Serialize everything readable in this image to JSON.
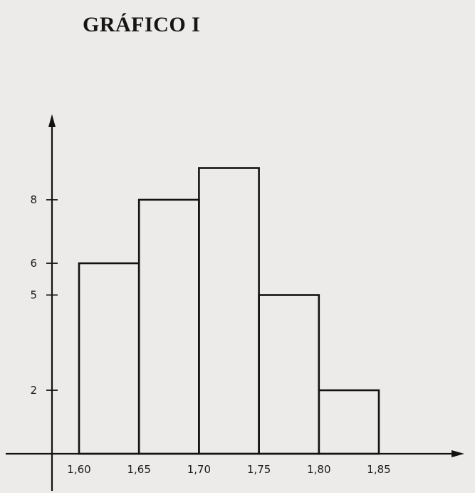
{
  "chart_data": {
    "type": "bar",
    "title": "GRÁFICO I",
    "xlabel": "",
    "ylabel": "",
    "bin_edges": [
      1.6,
      1.65,
      1.7,
      1.75,
      1.8,
      1.85
    ],
    "values": [
      6,
      8,
      9,
      5,
      2
    ],
    "x_tick_labels": [
      "1,60",
      "1,65",
      "1,70",
      "1,75",
      "1,80",
      "1,85"
    ],
    "y_ticks": [
      2,
      5,
      6,
      8
    ],
    "y_tick_labels": [
      "2",
      "5",
      "6",
      "8"
    ],
    "xlim": [
      1.54,
      1.92
    ],
    "ylim": [
      0,
      21
    ],
    "grid": false,
    "colors": {
      "line": "#121212",
      "background": "#ecebe9"
    }
  }
}
